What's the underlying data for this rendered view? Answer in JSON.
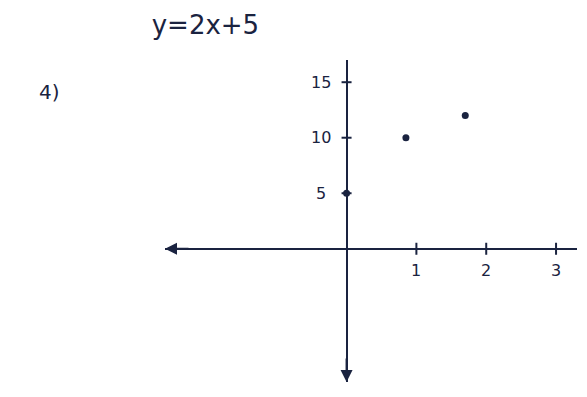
{
  "chart_data": {
    "type": "scatter",
    "title": "y=2x+5",
    "annotations": [
      "4)"
    ],
    "x": [
      0,
      0.85,
      1.7
    ],
    "values": [
      5,
      10,
      12
    ],
    "color": "#1a2340",
    "marker": "circle",
    "xlim": [
      -2.6,
      3.3
    ],
    "ylim": [
      -12,
      17
    ],
    "xticks": [
      1,
      2,
      3
    ],
    "yticks": [
      5,
      10,
      15
    ],
    "grid": false
  }
}
